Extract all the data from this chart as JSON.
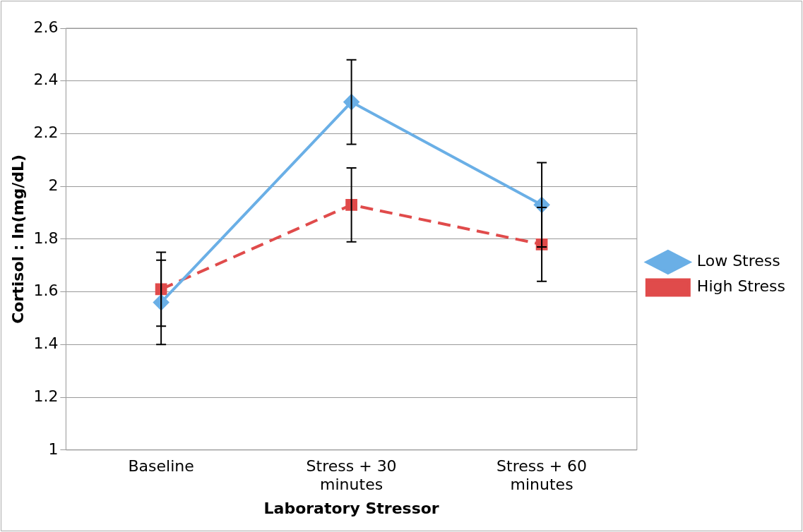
{
  "chart_data": {
    "type": "line",
    "xlabel": "Laboratory Stressor",
    "ylabel": "Cortisol : ln(mg/dL)",
    "categories": [
      "Baseline",
      "Stress + 30 minutes",
      "Stress + 60 minutes"
    ],
    "series": [
      {
        "name": "Low Stress",
        "color": "#6aafe6",
        "values": [
          1.56,
          2.32,
          1.93
        ],
        "errors": [
          0.16,
          0.16,
          0.16
        ],
        "marker": "diamond",
        "line_style": "solid"
      },
      {
        "name": "High Stress",
        "color": "#e04b4b",
        "values": [
          1.61,
          1.93,
          1.78
        ],
        "errors": [
          0.14,
          0.14,
          0.14
        ],
        "marker": "square",
        "line_style": "dashed"
      }
    ],
    "ylim": [
      1,
      2.6
    ],
    "yticks": [
      1,
      1.2,
      1.4,
      1.6,
      1.8,
      2,
      2.2,
      2.4,
      2.6
    ],
    "grid": "y",
    "legend": "right"
  }
}
